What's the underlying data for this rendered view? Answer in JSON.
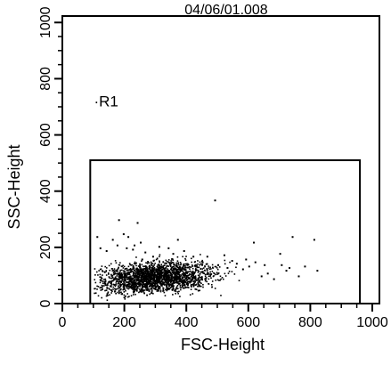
{
  "chart_data": {
    "type": "scatter",
    "title": "04/06/01.008",
    "xlabel": "FSC-Height",
    "ylabel": "SSC-Height",
    "xlim": [
      0,
      1023
    ],
    "ylim": [
      0,
      1023
    ],
    "x_ticks": [
      0,
      200,
      400,
      600,
      800,
      1000
    ],
    "y_ticks": [
      0,
      200,
      400,
      600,
      800,
      1000
    ],
    "x_tick_labels": [
      "0",
      "200",
      "400",
      "600",
      "800",
      "1000"
    ],
    "y_tick_labels": [
      "0",
      "200",
      "400",
      "600",
      "800",
      "1000"
    ],
    "grid": false,
    "gate": {
      "label": "R1",
      "label_position": [
        125,
        720
      ],
      "x_range": [
        90,
        960
      ],
      "y_range": [
        0,
        510
      ]
    },
    "density": {
      "dense_x_center": 300,
      "dense_x_spread": 120,
      "dense_y_center": 80,
      "dense_y_spread": 45,
      "dense_x_min": 100,
      "dense_x_max": 600
    },
    "series": [
      {
        "values_xy": [
          [
            180,
            300
          ],
          [
            240,
            290
          ],
          [
            255,
            160
          ],
          [
            370,
            230
          ],
          [
            490,
            370
          ],
          [
            615,
            220
          ],
          [
            700,
            180
          ],
          [
            740,
            240
          ],
          [
            810,
            230
          ],
          [
            530,
            130
          ],
          [
            660,
            110
          ],
          [
            720,
            120
          ],
          [
            195,
            250
          ],
          [
            210,
            240
          ],
          [
            230,
            210
          ],
          [
            265,
            185
          ],
          [
            290,
            170
          ],
          [
            340,
            200
          ],
          [
            420,
            170
          ],
          [
            450,
            150
          ],
          [
            500,
            140
          ],
          [
            560,
            145
          ],
          [
            580,
            125
          ],
          [
            600,
            135
          ],
          [
            640,
            100
          ],
          [
            680,
            90
          ],
          [
            760,
            100
          ],
          [
            110,
            240
          ],
          [
            120,
            200
          ],
          [
            140,
            190
          ],
          [
            160,
            230
          ],
          [
            175,
            210
          ],
          [
            205,
            200
          ],
          [
            225,
            195
          ],
          [
            250,
            220
          ],
          [
            310,
            205
          ],
          [
            355,
            180
          ],
          [
            390,
            190
          ],
          [
            465,
            170
          ],
          [
            520,
            175
          ],
          [
            545,
            155
          ],
          [
            590,
            160
          ],
          [
            620,
            150
          ],
          [
            650,
            140
          ],
          [
            705,
            140
          ],
          [
            730,
            130
          ],
          [
            780,
            135
          ],
          [
            820,
            120
          ]
        ]
      }
    ]
  }
}
